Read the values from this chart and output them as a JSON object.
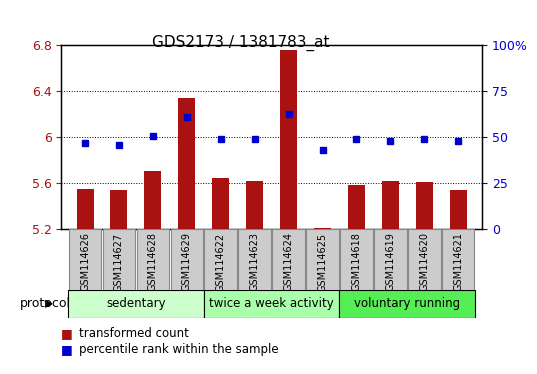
{
  "title": "GDS2173 / 1381783_at",
  "samples": [
    "GSM114626",
    "GSM114627",
    "GSM114628",
    "GSM114629",
    "GSM114622",
    "GSM114623",
    "GSM114624",
    "GSM114625",
    "GSM114618",
    "GSM114619",
    "GSM114620",
    "GSM114621"
  ],
  "transformed_count": [
    5.55,
    5.54,
    5.71,
    6.34,
    5.65,
    5.62,
    6.76,
    5.21,
    5.59,
    5.62,
    5.61,
    5.54
  ],
  "percentile_rank": [
    47,
    46,
    51,
    61,
    49,
    49,
    63,
    43,
    49,
    48,
    49,
    48
  ],
  "ylim_left": [
    5.2,
    6.8
  ],
  "ylim_right": [
    0,
    100
  ],
  "yticks_left": [
    5.2,
    5.6,
    6.0,
    6.4,
    6.8
  ],
  "yticks_right": [
    0,
    25,
    50,
    75,
    100
  ],
  "ytick_labels_left": [
    "5.2",
    "5.6",
    "6",
    "6.4",
    "6.8"
  ],
  "ytick_labels_right": [
    "0",
    "25",
    "50",
    "75",
    "100%"
  ],
  "bar_color": "#aa1111",
  "dot_color": "#0000cc",
  "protocol_groups": [
    {
      "label": "sedentary",
      "start": 0,
      "end": 3,
      "color": "#ccffcc"
    },
    {
      "label": "twice a week activity",
      "start": 4,
      "end": 7,
      "color": "#aaffaa"
    },
    {
      "label": "voluntary running",
      "start": 8,
      "end": 11,
      "color": "#55ee55"
    }
  ],
  "protocol_label": "protocol",
  "legend_items": [
    {
      "label": "transformed count",
      "color": "#aa1111"
    },
    {
      "label": "percentile rank within the sample",
      "color": "#0000cc"
    }
  ],
  "bar_width": 0.5,
  "sample_box_color": "#cccccc",
  "sample_box_edgecolor": "#888888"
}
